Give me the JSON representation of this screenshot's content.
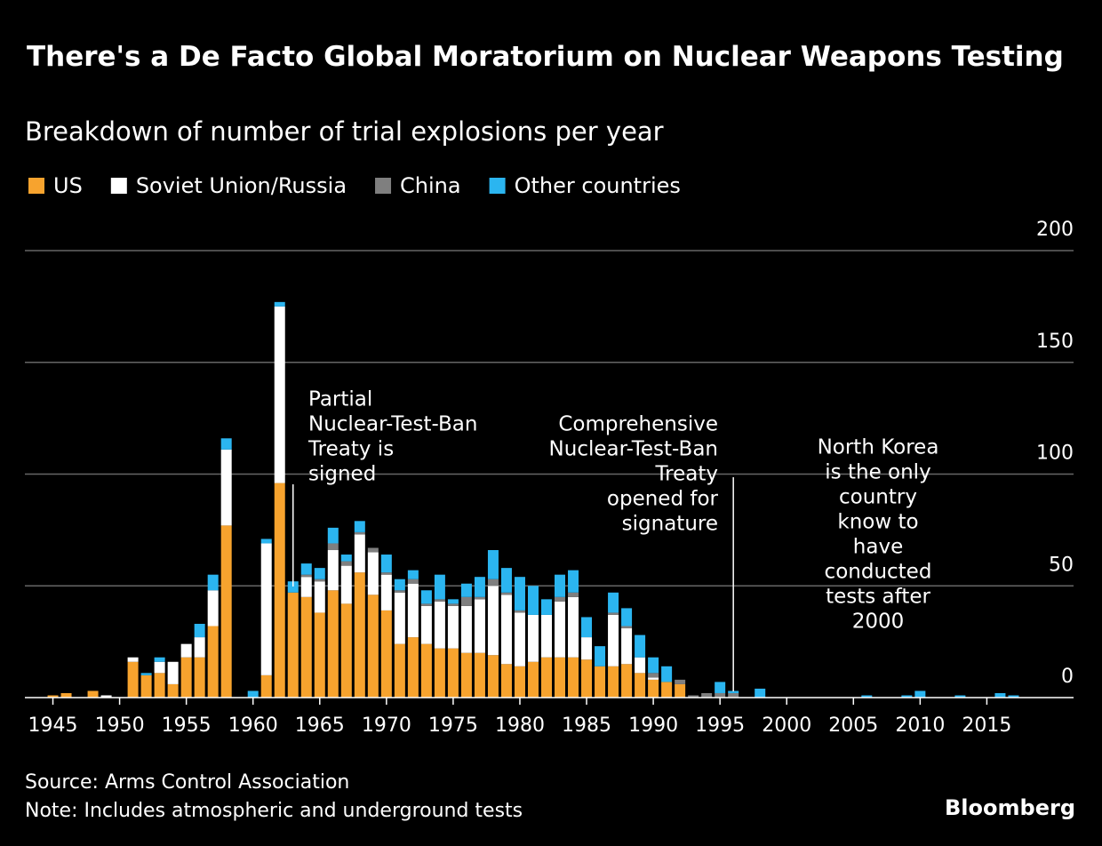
{
  "chart_data": {
    "type": "stacked-bar",
    "title": "There's a De Facto Global Moratorium on Nuclear Weapons Testing",
    "subtitle": "Breakdown of number of trial explosions per year",
    "x": [
      1945,
      1946,
      1948,
      1949,
      1951,
      1952,
      1953,
      1954,
      1955,
      1956,
      1957,
      1958,
      1960,
      1961,
      1962,
      1963,
      1964,
      1965,
      1966,
      1967,
      1968,
      1969,
      1970,
      1971,
      1972,
      1973,
      1974,
      1975,
      1976,
      1977,
      1978,
      1979,
      1980,
      1981,
      1982,
      1983,
      1984,
      1985,
      1986,
      1987,
      1988,
      1989,
      1990,
      1991,
      1992,
      1993,
      1994,
      1995,
      1996,
      1998,
      2006,
      2009,
      2010,
      2013,
      2016,
      2017
    ],
    "series": [
      {
        "name": "US",
        "color": "#f7a32e",
        "values": [
          1,
          2,
          3,
          0,
          16,
          10,
          11,
          6,
          18,
          18,
          32,
          77,
          0,
          10,
          96,
          47,
          45,
          38,
          48,
          42,
          56,
          46,
          39,
          24,
          27,
          24,
          22,
          22,
          20,
          20,
          19,
          15,
          14,
          16,
          18,
          18,
          18,
          17,
          14,
          14,
          15,
          11,
          8,
          7,
          6,
          0,
          0,
          0,
          0,
          0,
          0,
          0,
          0,
          0,
          0,
          0
        ]
      },
      {
        "name": "Soviet Union/Russia",
        "color": "#ffffff",
        "values": [
          0,
          0,
          0,
          1,
          2,
          0,
          5,
          10,
          6,
          9,
          16,
          34,
          0,
          59,
          79,
          0,
          9,
          14,
          18,
          17,
          17,
          19,
          16,
          23,
          24,
          17,
          21,
          19,
          21,
          24,
          31,
          31,
          24,
          21,
          19,
          25,
          27,
          10,
          0,
          23,
          16,
          7,
          1,
          0,
          0,
          0,
          0,
          0,
          0,
          0,
          0,
          0,
          0,
          0,
          0,
          0
        ]
      },
      {
        "name": "China",
        "color": "#7f7f7f",
        "values": [
          0,
          0,
          0,
          0,
          0,
          0,
          0,
          0,
          0,
          0,
          0,
          0,
          0,
          0,
          0,
          0,
          1,
          1,
          3,
          2,
          1,
          2,
          1,
          1,
          2,
          1,
          1,
          1,
          4,
          1,
          3,
          1,
          1,
          0,
          0,
          2,
          2,
          0,
          0,
          1,
          1,
          0,
          2,
          0,
          2,
          1,
          2,
          2,
          2,
          0,
          0,
          0,
          0,
          0,
          0,
          0
        ]
      },
      {
        "name": "Other countries",
        "color": "#2bb5f0",
        "values": [
          0,
          0,
          0,
          0,
          0,
          1,
          2,
          0,
          0,
          6,
          7,
          5,
          3,
          2,
          2,
          5,
          5,
          5,
          7,
          3,
          5,
          0,
          8,
          5,
          4,
          6,
          11,
          2,
          6,
          9,
          13,
          11,
          15,
          13,
          7,
          10,
          10,
          9,
          9,
          9,
          8,
          10,
          7,
          7,
          0,
          0,
          0,
          5,
          1,
          4,
          1,
          1,
          3,
          1,
          2,
          1
        ]
      }
    ],
    "xlim": [
      1942.9,
      2021.5
    ],
    "xticks": [
      1945,
      1950,
      1955,
      1960,
      1965,
      1970,
      1975,
      1980,
      1985,
      1990,
      1995,
      2000,
      2005,
      2010,
      2015
    ],
    "ylim": [
      0,
      200
    ],
    "yticks": [
      0,
      50,
      100,
      150,
      200
    ],
    "grid": true,
    "annotations": [
      {
        "lines": [
          "Partial",
          "Nuclear-Test-Ban",
          "Treaty is",
          "signed"
        ],
        "x": 1963
      },
      {
        "lines": [
          "Comprehensive",
          "Nuclear-Test-Ban",
          "Treaty",
          "opened for",
          "signature"
        ],
        "x": 1996
      },
      {
        "lines": [
          "North Korea",
          "is the only",
          "country",
          "know to",
          "have",
          "conducted",
          "tests after",
          "2000"
        ]
      }
    ],
    "source": "Source: Arms Control Association",
    "note": "Note: Includes atmospheric and underground tests",
    "credit": "Bloomberg"
  }
}
